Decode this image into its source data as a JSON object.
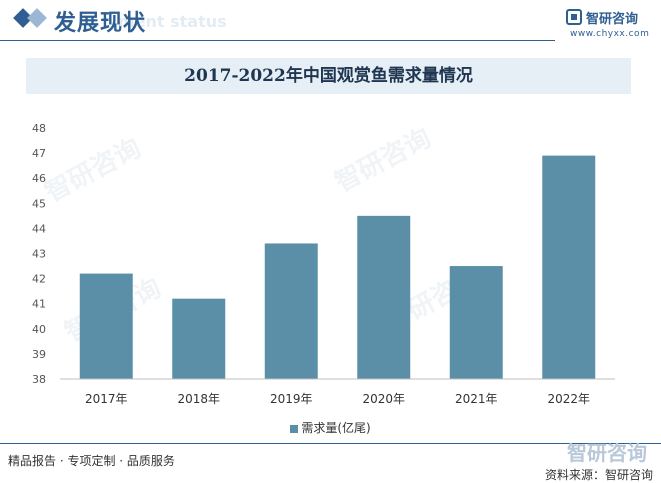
{
  "header": {
    "title": "发展现状",
    "ghost_text": "ment status",
    "brand_name": "智研咨询",
    "brand_url": "www.chyxx.com"
  },
  "chart_data": {
    "type": "bar",
    "title": "2017-2022年中国观赏鱼需求量情况",
    "categories": [
      "2017年",
      "2018年",
      "2019年",
      "2020年",
      "2021年",
      "2022年"
    ],
    "series": [
      {
        "name": "需求量(亿尾)",
        "values": [
          42.2,
          41.2,
          43.4,
          44.5,
          42.5,
          46.9
        ]
      }
    ],
    "ylim": [
      38,
      48
    ],
    "yticks": [
      "38",
      "39",
      "40",
      "41",
      "42",
      "43",
      "44",
      "45",
      "46",
      "47",
      "48"
    ],
    "grid": false,
    "legend": "bottom",
    "bar_color": "#5b8fa8"
  },
  "footer": {
    "left": "精品报告 · 专项定制 · 品质服务",
    "watermark_brand": "智研咨询",
    "source": "资料来源：智研咨询"
  },
  "watermark_text": "智研咨询"
}
